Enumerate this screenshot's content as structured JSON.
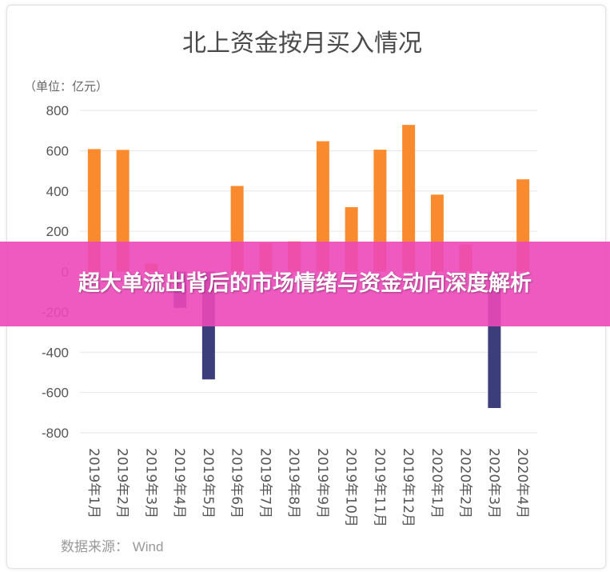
{
  "chart_data": {
    "type": "bar",
    "title": "北上资金按月买入情况",
    "unit_label": "（单位：亿元）",
    "source": "数据来源： Wind",
    "ylim": [
      -800,
      800
    ],
    "yticks": [
      800,
      600,
      400,
      200,
      0,
      -200,
      -400,
      -600,
      -800
    ],
    "grid": true,
    "categories": [
      "2019年1月",
      "2019年2月",
      "2019年3月",
      "2019年4月",
      "2019年5月",
      "2019年6月",
      "2019年7月",
      "2019年8月",
      "2019年9月",
      "2019年10月",
      "2019年11月",
      "2019年12月",
      "2020年1月",
      "2020年2月",
      "2020年3月",
      "2020年4月"
    ],
    "values": [
      608,
      604,
      40,
      -180,
      -535,
      425,
      140,
      150,
      647,
      320,
      605,
      728,
      382,
      135,
      -677,
      458
    ],
    "colors": {
      "positive": "#f98b2e",
      "negative": "#3b3e7a"
    }
  },
  "overlay": {
    "headline": "超大单流出背后的市场情绪与资金动向深度解析"
  }
}
